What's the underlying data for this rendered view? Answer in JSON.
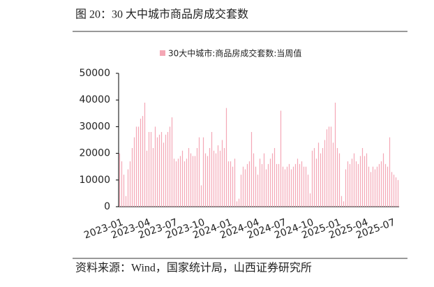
{
  "chart_data": {
    "type": "bar",
    "title": "图 20：30 大中城市商品房成交套数",
    "source": "资料来源：Wind，国家统计局，山西证券研究所",
    "categories": [
      "2023-01",
      null,
      null,
      null,
      null,
      null,
      null,
      null,
      null,
      null,
      null,
      null,
      null,
      "2023-04",
      null,
      null,
      null,
      null,
      null,
      null,
      null,
      null,
      null,
      null,
      null,
      null,
      "2023-07",
      null,
      null,
      null,
      null,
      null,
      null,
      null,
      null,
      null,
      null,
      null,
      null,
      "2023-10",
      null,
      null,
      null,
      null,
      null,
      null,
      null,
      null,
      null,
      null,
      null,
      null,
      "2024-01",
      null,
      null,
      null,
      null,
      null,
      null,
      null,
      null,
      null,
      null,
      null,
      null,
      "2024-04",
      null,
      null,
      null,
      null,
      null,
      null,
      null,
      null,
      null,
      null,
      null,
      null,
      "2024-07",
      null,
      null,
      null,
      null,
      null,
      null,
      null,
      null,
      null,
      null,
      null,
      null,
      "2024-10",
      null,
      null,
      null,
      null,
      null,
      null,
      null,
      null,
      null,
      null,
      null,
      null,
      "2025-01",
      null,
      null,
      null,
      null,
      null,
      null,
      null,
      null,
      null,
      null,
      null,
      null,
      "2025-04",
      null,
      null,
      null,
      null,
      null,
      null,
      null,
      null,
      null,
      null,
      null,
      null,
      "2025-07",
      null,
      null,
      null
    ],
    "series": [
      {
        "name": "30大中城市:商品房成交套数:当周值",
        "color": "#f4a7b5",
        "values": [
          20000,
          17000,
          12000,
          4000,
          14000,
          17000,
          22000,
          26000,
          30000,
          30000,
          33000,
          34000,
          39000,
          21000,
          28000,
          28000,
          22000,
          30000,
          26000,
          27000,
          28000,
          24000,
          27000,
          28000,
          30000,
          33500,
          18000,
          17000,
          18000,
          19000,
          21000,
          17000,
          18000,
          22000,
          20000,
          19000,
          19000,
          22000,
          26000,
          8000,
          26000,
          20000,
          19000,
          22000,
          28000,
          21000,
          20000,
          23000,
          21000,
          25000,
          22000,
          37000,
          17000,
          17000,
          15000,
          18000,
          2000,
          3000,
          12000,
          15000,
          14000,
          16000,
          17000,
          28000,
          20000,
          15000,
          12000,
          18000,
          16000,
          20000,
          14000,
          16000,
          18000,
          20000,
          22000,
          16000,
          16000,
          36000,
          15000,
          14000,
          15000,
          16000,
          14000,
          15000,
          16000,
          18000,
          16000,
          17000,
          15000,
          15000,
          12000,
          5000,
          21000,
          22000,
          18000,
          24000,
          20000,
          22000,
          25000,
          29000,
          30000,
          30000,
          24000,
          39000,
          22000,
          20000,
          4000,
          2000,
          14000,
          17000,
          16000,
          18000,
          20000,
          17000,
          16000,
          19000,
          22000,
          19000,
          20000,
          15000,
          13000,
          15000,
          14000,
          15000,
          16000,
          17000,
          20000,
          16000,
          15000,
          26000,
          13000,
          12000,
          11000,
          10000
        ]
      }
    ],
    "ylim": [
      0,
      50000
    ],
    "yticks": [
      0,
      10000,
      20000,
      30000,
      40000,
      50000
    ],
    "grid": false
  }
}
